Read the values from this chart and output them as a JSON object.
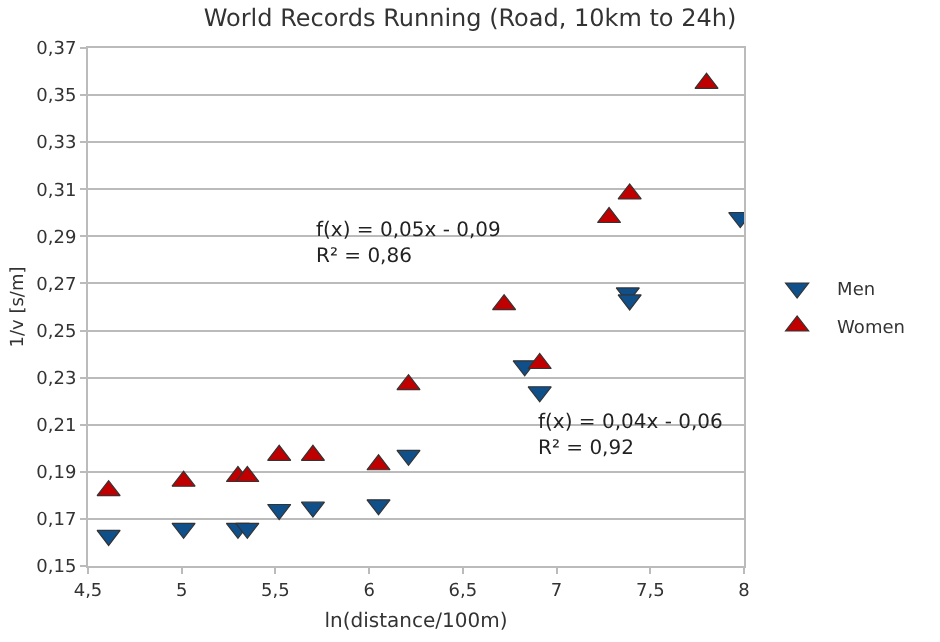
{
  "chart_data": {
    "type": "scatter",
    "title": "World Records Running (Road, 10km to 24h)",
    "xlabel": "ln(distance/100m)",
    "ylabel": "1/v [s/m]",
    "xlim": [
      4.5,
      8
    ],
    "xticks": [
      {
        "value": 4.5,
        "label": "4,5"
      },
      5,
      {
        "value": 5.5,
        "label": "5,5"
      },
      6,
      {
        "value": 6.5,
        "label": "6,5"
      },
      7,
      {
        "value": 7.5,
        "label": "7,5"
      },
      8
    ],
    "ylim": [
      0.15,
      0.37
    ],
    "yticks": [
      {
        "value": 0.15,
        "label": "0,15"
      },
      {
        "value": 0.17,
        "label": "0,17"
      },
      {
        "value": 0.19,
        "label": "0,19"
      },
      {
        "value": 0.21,
        "label": "0,21"
      },
      {
        "value": 0.23,
        "label": "0,23"
      },
      {
        "value": 0.25,
        "label": "0,25"
      },
      {
        "value": 0.27,
        "label": "0,27"
      },
      {
        "value": 0.29,
        "label": "0,29"
      },
      {
        "value": 0.31,
        "label": "0,31"
      },
      {
        "value": 0.33,
        "label": "0,33"
      },
      {
        "value": 0.35,
        "label": "0,35"
      },
      {
        "value": 0.37,
        "label": "0,37"
      }
    ],
    "grid": "y",
    "legend": "right",
    "series": [
      {
        "name": "Men",
        "color": "#0f4f8a",
        "marker": "triangle-down",
        "x": [
          4.61,
          5.01,
          5.3,
          5.35,
          5.52,
          5.7,
          6.05,
          6.21,
          6.83,
          6.91,
          7.38,
          7.39,
          7.98
        ],
        "values": [
          0.163,
          0.166,
          0.166,
          0.166,
          0.174,
          0.175,
          0.176,
          0.197,
          0.235,
          0.224,
          0.266,
          0.263,
          0.298
        ]
      },
      {
        "name": "Women",
        "color": "#c00000",
        "marker": "triangle",
        "x": [
          4.61,
          5.01,
          5.3,
          5.35,
          5.52,
          5.7,
          6.05,
          6.21,
          6.72,
          6.91,
          7.28,
          7.39,
          7.8
        ],
        "values": [
          0.182,
          0.186,
          0.188,
          0.188,
          0.197,
          0.197,
          0.193,
          0.227,
          0.261,
          0.236,
          0.298,
          0.308,
          0.355
        ]
      }
    ],
    "annotations": [
      "f(x) = 0,05x - 0,09\nR² = 0,86",
      "f(x) = 0,04x - 0,06\nR² = 0,92"
    ]
  }
}
